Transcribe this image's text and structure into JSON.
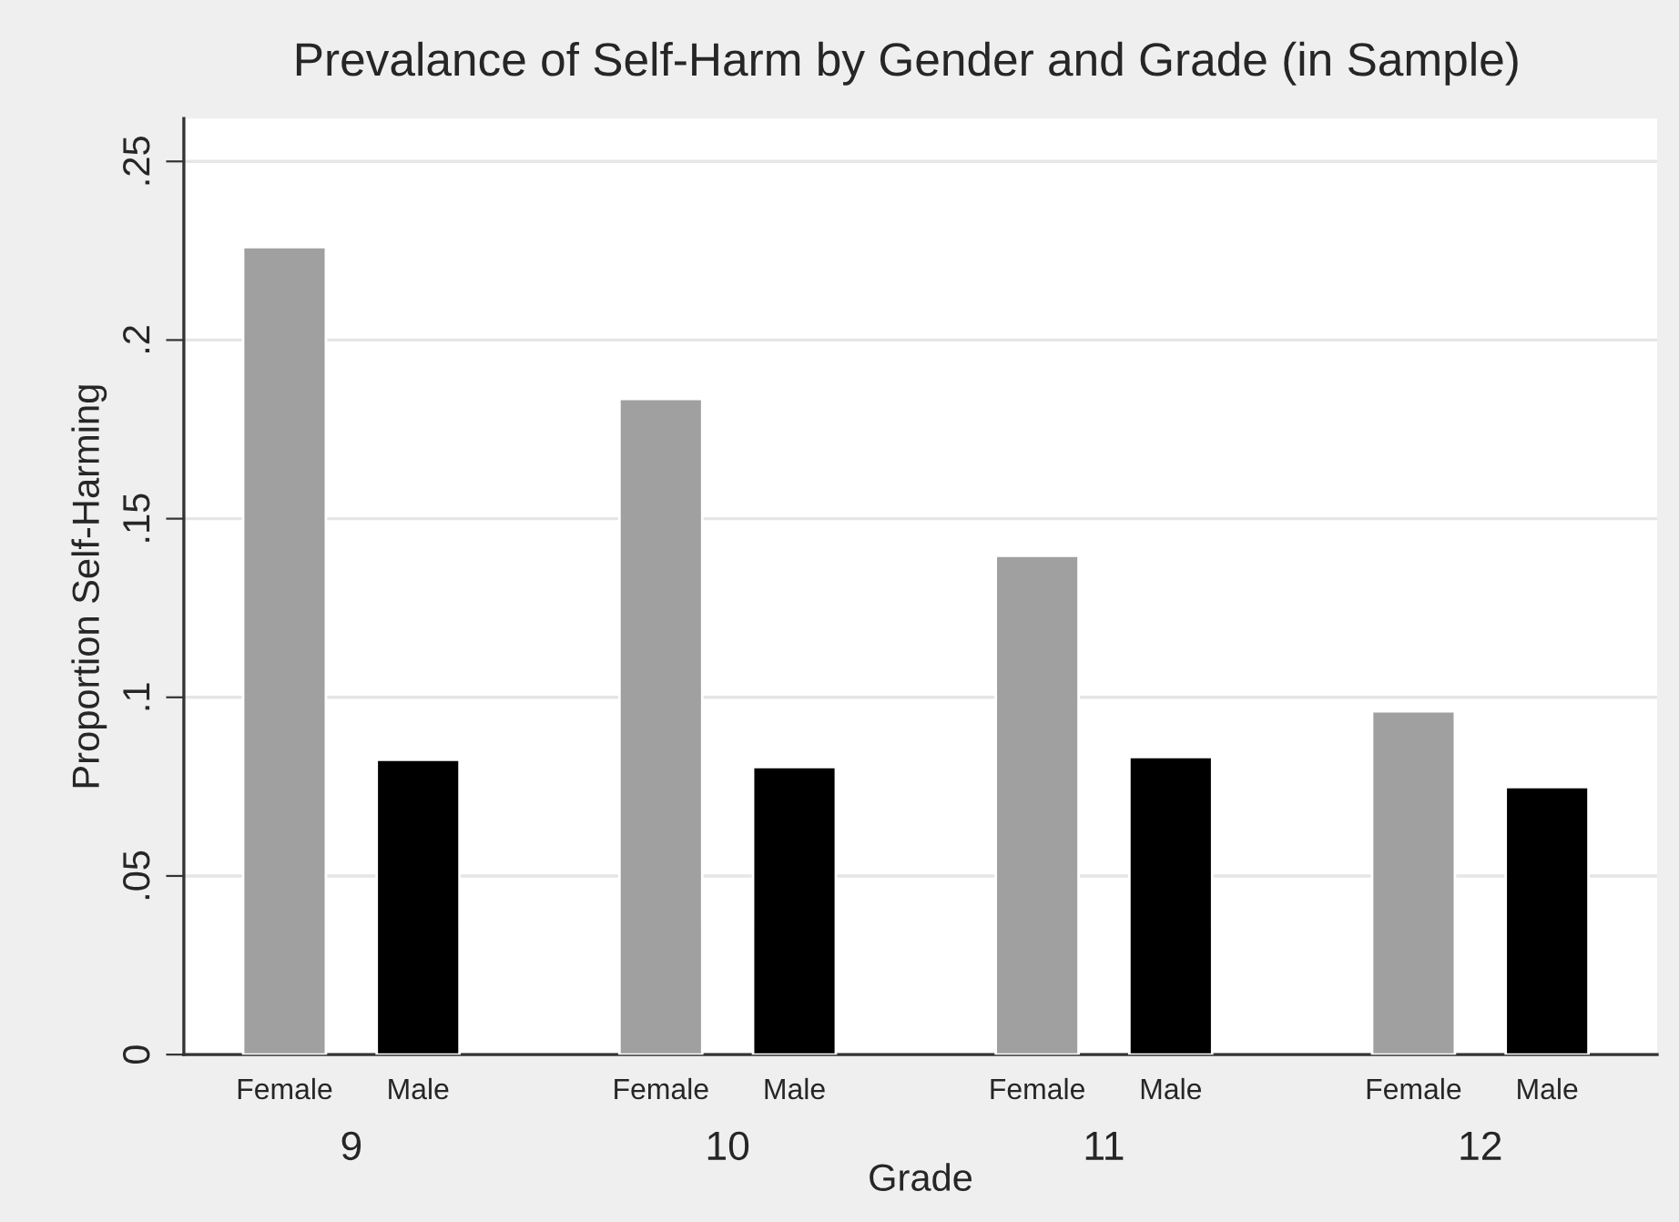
{
  "chart_data": {
    "type": "bar",
    "title": "Prevalance of Self-Harm by Gender and Grade (in Sample)",
    "xlabel": "Grade",
    "ylabel": "Proportion Self-Harming",
    "categories": [
      "9",
      "10",
      "11",
      "12"
    ],
    "series": [
      {
        "name": "Female",
        "color": "#a0a0a0",
        "values": [
          0.226,
          0.1835,
          0.1396,
          0.0961
        ]
      },
      {
        "name": "Male",
        "color": "#000000",
        "values": [
          0.0825,
          0.0805,
          0.0833,
          0.0749
        ]
      }
    ],
    "ylim": [
      0,
      0.262
    ],
    "yticks": [
      0,
      {
        "value": 0.05,
        "label": ".05"
      },
      {
        "value": 0.1,
        "label": ".1"
      },
      {
        "value": 0.15,
        "label": ".15"
      },
      {
        "value": 0.2,
        "label": ".2"
      },
      {
        "value": 0.25,
        "label": ".25"
      }
    ],
    "grid": "y",
    "legend": false
  }
}
